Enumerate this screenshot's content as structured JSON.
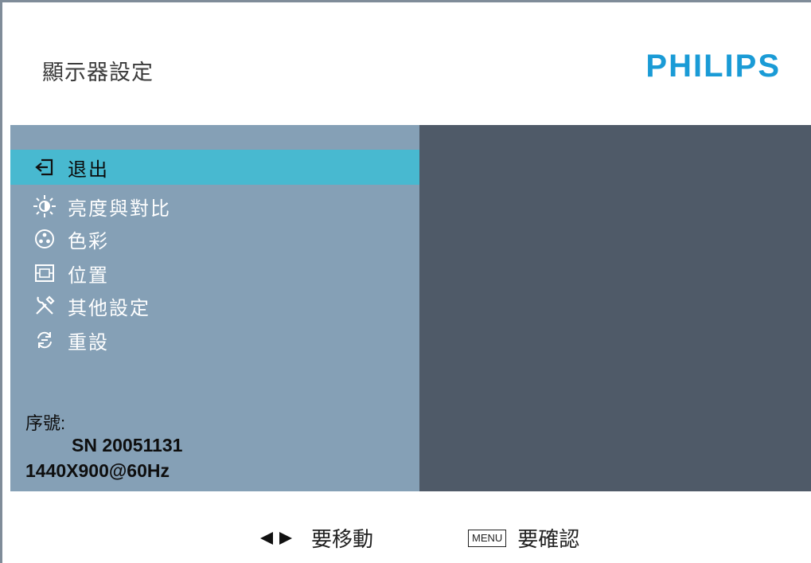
{
  "header": {
    "title": "顯示器設定",
    "logo": "PHILIPS"
  },
  "menu": {
    "items": [
      {
        "label": "退出",
        "icon": "exit-icon",
        "selected": true
      },
      {
        "label": "亮度與對比",
        "icon": "brightness-icon",
        "selected": false
      },
      {
        "label": "色彩",
        "icon": "color-icon",
        "selected": false
      },
      {
        "label": "位置",
        "icon": "position-icon",
        "selected": false
      },
      {
        "label": "其他設定",
        "icon": "tools-icon",
        "selected": false
      },
      {
        "label": "重設",
        "icon": "reset-icon",
        "selected": false
      }
    ]
  },
  "info": {
    "serial_label": "序號:",
    "serial": "SN 20051131",
    "resolution": "1440X900@60Hz"
  },
  "footer": {
    "move_hint": "要移動",
    "menu_key": "MENU",
    "confirm_hint": "要確認"
  },
  "colors": {
    "panel": "#85a0b6",
    "selected": "#48b9d0",
    "content": "#4f5a68",
    "logo": "#1a9bd6"
  }
}
